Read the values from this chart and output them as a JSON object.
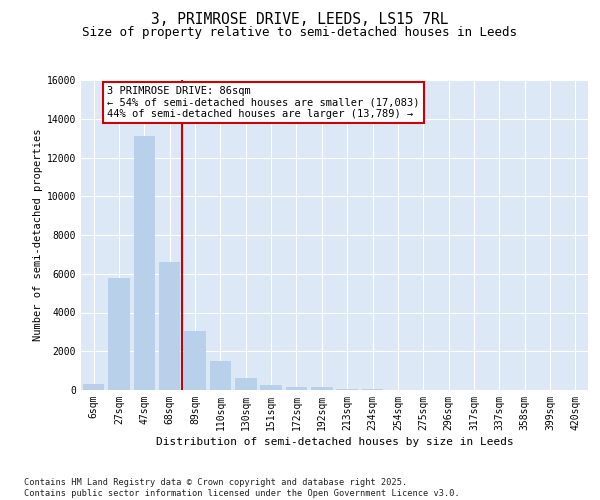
{
  "title_line1": "3, PRIMROSE DRIVE, LEEDS, LS15 7RL",
  "title_line2": "Size of property relative to semi-detached houses in Leeds",
  "xlabel": "Distribution of semi-detached houses by size in Leeds",
  "ylabel": "Number of semi-detached properties",
  "categories": [
    "6sqm",
    "27sqm",
    "47sqm",
    "68sqm",
    "89sqm",
    "110sqm",
    "130sqm",
    "151sqm",
    "172sqm",
    "192sqm",
    "213sqm",
    "234sqm",
    "254sqm",
    "275sqm",
    "296sqm",
    "317sqm",
    "337sqm",
    "358sqm",
    "399sqm",
    "420sqm"
  ],
  "values": [
    300,
    5800,
    13100,
    6600,
    3050,
    1480,
    620,
    280,
    170,
    130,
    70,
    40,
    0,
    0,
    0,
    0,
    0,
    0,
    0,
    0
  ],
  "bar_color": "#b8d0ea",
  "bar_edgecolor": "#b8d0ea",
  "vline_color": "#cc0000",
  "vline_xindex": 3,
  "annotation_title": "3 PRIMROSE DRIVE: 86sqm",
  "annotation_line1": "← 54% of semi-detached houses are smaller (17,083)",
  "annotation_line2": "44% of semi-detached houses are larger (13,789) →",
  "ylim_max": 16000,
  "yticks": [
    0,
    2000,
    4000,
    6000,
    8000,
    10000,
    12000,
    14000,
    16000
  ],
  "plot_bg_color": "#dce8f5",
  "fig_bg_color": "#ffffff",
  "grid_color": "#ffffff",
  "footnote_line1": "Contains HM Land Registry data © Crown copyright and database right 2025.",
  "footnote_line2": "Contains public sector information licensed under the Open Government Licence v3.0.",
  "title_fontsize": 10.5,
  "subtitle_fontsize": 9,
  "tick_fontsize": 7,
  "ylabel_fontsize": 7.5,
  "xlabel_fontsize": 8,
  "annotation_fontsize": 7.5,
  "footnote_fontsize": 6.2
}
